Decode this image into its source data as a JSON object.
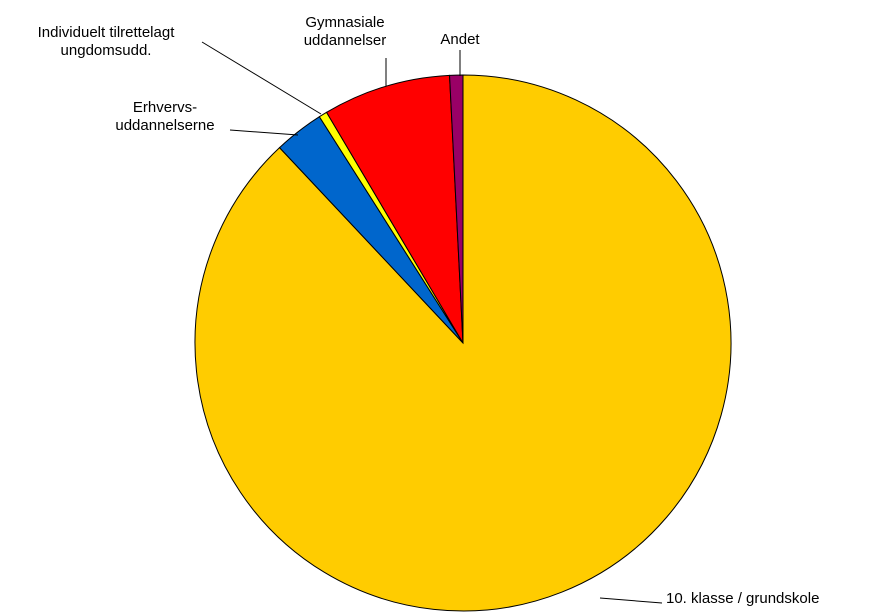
{
  "chart_data": {
    "type": "pie",
    "categories": [
      "10. klasse / grundskole",
      "Erhvervs-\nuddannelserne",
      "Individuelt tilrettelagt\nungdomsudd.",
      "Gymnasiale\nuddannelser",
      "Andet"
    ],
    "values": [
      88,
      3,
      0.5,
      7.7,
      0.8
    ],
    "colors": [
      "#ffcc00",
      "#0066cc",
      "#ffff00",
      "#ff0000",
      "#990066"
    ]
  }
}
